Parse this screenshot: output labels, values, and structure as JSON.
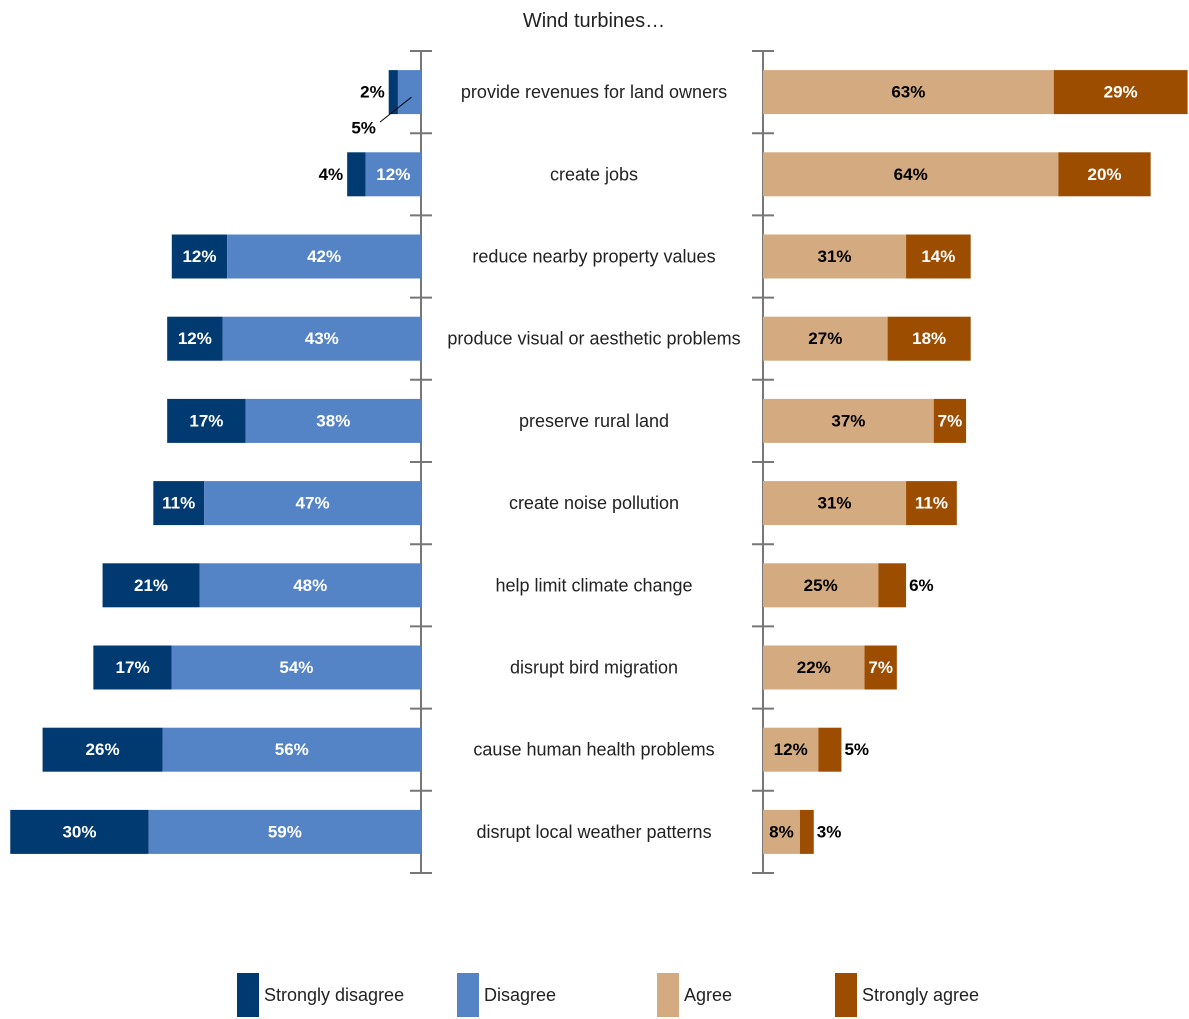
{
  "chart_data": {
    "type": "bar",
    "title": "Wind turbines…",
    "categories": [
      "provide revenues for land owners",
      "create jobs",
      "reduce nearby property values",
      "produce visual or aesthetic problems",
      "preserve rural land",
      "create noise pollution",
      "help limit climate change",
      "disrupt bird migration",
      "cause human health problems",
      "disrupt local weather patterns"
    ],
    "series": [
      {
        "name": "Strongly disagree",
        "color": "#003a70",
        "values": [
          2,
          4,
          12,
          12,
          17,
          11,
          21,
          17,
          26,
          30
        ],
        "labels": [
          "2%",
          "4%",
          "12%",
          "12%",
          "17%",
          "11%",
          "21%",
          "17%",
          "26%",
          "30%"
        ]
      },
      {
        "name": "Disagree",
        "color": "#5483c6",
        "values": [
          5,
          12,
          42,
          43,
          38,
          47,
          48,
          54,
          56,
          59
        ],
        "labels": [
          "5%",
          "12%",
          "42%",
          "43%",
          "38%",
          "47%",
          "48%",
          "54%",
          "56%",
          "59%"
        ]
      },
      {
        "name": "Agree",
        "color": "#d4aa80",
        "values": [
          63,
          64,
          31,
          27,
          37,
          31,
          25,
          22,
          12,
          8
        ],
        "labels": [
          "63%",
          "64%",
          "31%",
          "27%",
          "37%",
          "31%",
          "25%",
          "22%",
          "12%",
          "8%"
        ]
      },
      {
        "name": "Strongly agree",
        "color": "#9c4d00",
        "values": [
          29,
          20,
          14,
          18,
          7,
          11,
          6,
          7,
          5,
          3
        ],
        "labels": [
          "29%",
          "20%",
          "14%",
          "18%",
          "7%",
          "11%",
          "6%",
          "7%",
          "5%",
          "3%"
        ]
      }
    ],
    "legend": "bottom"
  }
}
